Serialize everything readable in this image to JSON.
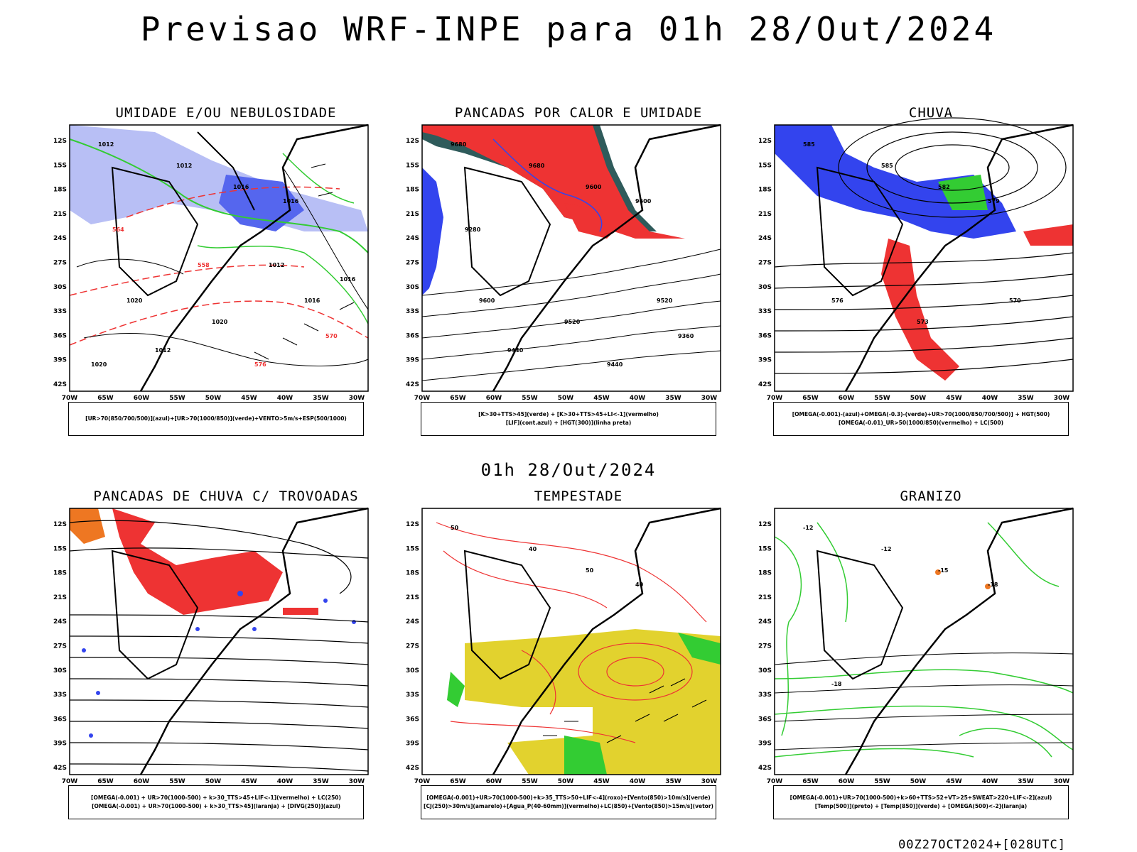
{
  "title": "Previsao WRF-INPE  para 01h 28/Out/2024",
  "mid_title": "01h 28/Out/2024",
  "footer": "00Z27OCT2024+[028UTC]",
  "axes": {
    "lat_labels": [
      "12S",
      "15S",
      "18S",
      "21S",
      "24S",
      "27S",
      "30S",
      "33S",
      "36S",
      "39S",
      "42S"
    ],
    "lon_labels": [
      "70W",
      "65W",
      "60W",
      "55W",
      "50W",
      "45W",
      "40W",
      "35W",
      "30W"
    ]
  },
  "panels": [
    {
      "title": "UMIDADE E/OU NEBULOSIDADE",
      "legend": [
        "[UR>70(850/700/500)](azul)+[UR>70(1000/850)](verde)+VENTO>5m/s+ESP(500/1000)"
      ],
      "contour_labels": [
        "1012",
        "1012",
        "1016",
        "1016",
        "1020",
        "1020",
        "1016",
        "1012",
        "576",
        "570",
        "564",
        "558",
        "1012",
        "1016",
        "1020"
      ]
    },
    {
      "title": "PANCADAS POR CALOR E UMIDADE",
      "legend": [
        "[K>30+TTS>45](verde) + [K>30+TTS>45+LI<-1](vermelho)",
        "[LIF](cont.azul) + [HGT(300)](linha preta)"
      ],
      "contour_labels": [
        "9680",
        "9680",
        "9600",
        "9600",
        "9600",
        "9520",
        "9520",
        "9440",
        "9440",
        "9360",
        "9280"
      ]
    },
    {
      "title": "CHUVA",
      "legend": [
        "[OMEGA(-0.001)-(azul)+OMEGA(-0.3)-(verde)+UR>70(1000/850/700/500)] + HGT(500)",
        "[OMEGA(-0.01)_UR>50(1000/850)(vermelho) + LC(500)"
      ],
      "contour_labels": [
        "585",
        "585",
        "582",
        "579",
        "576",
        "573",
        "570"
      ]
    },
    {
      "title": "PANCADAS DE CHUVA C/ TROVOADAS",
      "legend": [
        "[OMEGA(-0.001) + UR>70(1000-500) + k>30_TTS>45+LIF<-1](vermelho) + LC(250)",
        "[OMEGA(-0.001) + UR>70(1000-500) + k>30_TTS>45](laranja) + [DIVG(250)](azul)"
      ],
      "contour_labels": []
    },
    {
      "title": "TEMPESTADE",
      "legend": [
        "[OMEGA(-0.001)+UR>70(1000-500)+k>35_TTS>50+LIF<-4](roxo)+[Vento(850)>10m/s](verde)",
        "[CJ(250)>30m/s](amarelo)+[Agua_P(40-60mm)](vermelho)+LC(850)+[Vento(850)>15m/s](vetor)"
      ],
      "contour_labels": [
        "50",
        "40",
        "50",
        "40"
      ]
    },
    {
      "title": "GRANIZO",
      "legend": [
        "[OMEGA(-0.001)+UR>70(1000-500)+k>60+TTS>52+VT>25+SWEAT>220+LIF<-2](azul)",
        "[Temp(500)](preto) + [Temp(850)](verde) + [OMEGA(500)<-2](laranja)"
      ],
      "contour_labels": [
        "-12",
        "-12",
        "-15",
        "-18",
        "-18"
      ]
    }
  ],
  "colors": {
    "blue": "#3344ee",
    "lightblue": "#aab2f0",
    "green": "#33cc33",
    "red": "#ee3333",
    "darkteal": "#2f5b5b",
    "yellow": "#e2d22e",
    "orange": "#ee7722"
  }
}
